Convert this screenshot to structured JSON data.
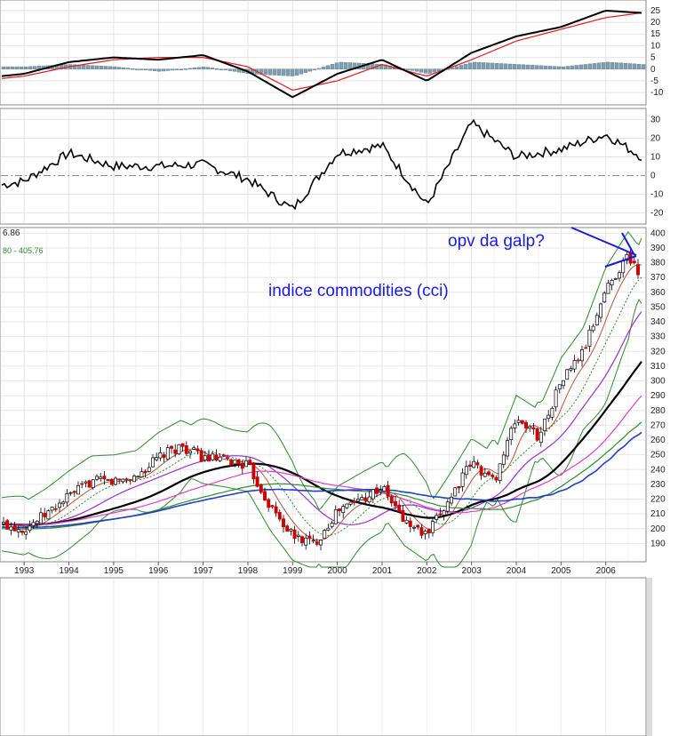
{
  "chart_data": [
    {
      "panel": "macd",
      "type": "line",
      "title": "",
      "ylim": [
        -13,
        28
      ],
      "y_ticks": [
        "25",
        "20",
        "15",
        "10",
        "5",
        "0",
        "-5",
        "-10"
      ],
      "x_years": [
        1992.5,
        1993,
        1994,
        1995,
        1996,
        1997,
        1998,
        1999,
        2000,
        2001,
        2002,
        2003,
        2004,
        2005,
        2006,
        2006.8
      ],
      "series": [
        {
          "name": "MACD",
          "color": "#000000",
          "values": [
            -3,
            -2,
            3,
            5,
            4,
            6,
            -1,
            -12,
            -2,
            4,
            -5,
            7,
            14,
            18,
            25,
            24
          ]
        },
        {
          "name": "Signal",
          "color": "#e8191b",
          "values": [
            -4,
            -3,
            1,
            4,
            5,
            5,
            1,
            -9,
            -5,
            2,
            -3,
            4,
            12,
            17,
            22,
            24
          ]
        },
        {
          "name": "Histogram",
          "color": "#7f9fb0",
          "values": [
            1,
            1,
            2,
            1,
            -1,
            1,
            -2,
            -3,
            3,
            2,
            -2,
            3,
            2,
            1,
            3,
            2
          ]
        }
      ]
    },
    {
      "panel": "momentum",
      "type": "line",
      "ylim": [
        -24,
        34
      ],
      "y_ticks": [
        "30",
        "20",
        "10",
        "0",
        "-10",
        "-20"
      ],
      "x_years": [
        1992.5,
        1993,
        1994,
        1995,
        1996,
        1997,
        1998,
        1999,
        2000,
        2001,
        2002,
        2003,
        2004,
        2005,
        2006,
        2006.8
      ],
      "series": [
        {
          "name": "Momentum",
          "color": "#000000",
          "values": [
            -5,
            -3,
            12,
            5,
            5,
            6,
            -2,
            -18,
            12,
            16,
            -16,
            28,
            10,
            14,
            22,
            10
          ]
        }
      ]
    },
    {
      "panel": "price",
      "type": "candlestick",
      "title": "indice commodities (cci)",
      "label_fragment_1": "6.86",
      "label_fragment_2": "80 - 405.76",
      "ylim": [
        180,
        402
      ],
      "y_ticks": [
        "400",
        "390",
        "380",
        "370",
        "360",
        "350",
        "340",
        "330",
        "320",
        "310",
        "300",
        "290",
        "280",
        "270",
        "260",
        "250",
        "240",
        "230",
        "220",
        "210",
        "200",
        "190"
      ],
      "x_tick_labels": [
        "1993",
        "1994",
        "1995",
        "1996",
        "1997",
        "1998",
        "1999",
        "2000",
        "2001",
        "2002",
        "2003",
        "2004",
        "2005",
        "2006"
      ],
      "x_years": [
        1992.5,
        1993,
        1993.5,
        1994,
        1994.5,
        1995,
        1995.5,
        1996,
        1996.5,
        1997,
        1997.5,
        1998,
        1998.5,
        1999,
        1999.5,
        2000,
        2000.5,
        2001,
        2001.5,
        2002,
        2002.5,
        2003,
        2003.5,
        2004,
        2004.5,
        2005,
        2005.5,
        2006,
        2006.5,
        2006.8
      ],
      "close": [
        203,
        200,
        210,
        222,
        232,
        232,
        235,
        248,
        256,
        248,
        246,
        243,
        215,
        195,
        190,
        212,
        220,
        228,
        205,
        195,
        220,
        245,
        232,
        275,
        262,
        300,
        320,
        362,
        385,
        370
      ],
      "overlays": [
        {
          "name": "upper-band",
          "color": "#2f8a2f"
        },
        {
          "name": "lower-band",
          "color": "#2f8a2f"
        },
        {
          "name": "moving-average-short",
          "color": "#b5533a"
        },
        {
          "name": "moving-average-dotted",
          "color": "#2f8a2f"
        },
        {
          "name": "moving-average-violet",
          "color": "#9a30d6"
        },
        {
          "name": "moving-average-black",
          "color": "#000000"
        },
        {
          "name": "moving-average-magenta",
          "color": "#e040c8"
        },
        {
          "name": "moving-average-green",
          "color": "#2f8a2f"
        },
        {
          "name": "moving-average-blue",
          "color": "#2040c0"
        }
      ],
      "annotations": [
        {
          "text": "opv da galp?",
          "color": "#1a1adc"
        },
        {
          "text": "indice commodities (cci)",
          "color": "#1a1adc"
        }
      ],
      "up_color": "#000000",
      "down_color": "#cc0000"
    }
  ]
}
